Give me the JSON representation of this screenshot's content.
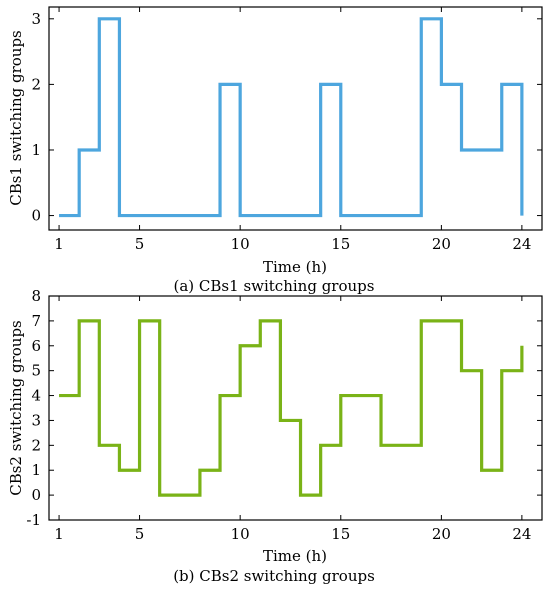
{
  "chart_data": [
    {
      "type": "line",
      "step": true,
      "caption": "(a) CBs1 switching groups",
      "xlabel": "Time (h)",
      "ylabel": "CBs1 switching groups",
      "x": [
        1,
        2,
        3,
        4,
        5,
        6,
        7,
        8,
        9,
        10,
        11,
        12,
        13,
        14,
        15,
        16,
        17,
        18,
        19,
        20,
        21,
        22,
        23,
        24
      ],
      "xticks": [
        1,
        5,
        10,
        15,
        20,
        24
      ],
      "yticks": [
        0,
        1,
        2,
        3
      ],
      "xlim": [
        0.5,
        25
      ],
      "ylim": [
        -0.22,
        3.18
      ],
      "series": [
        {
          "color": "#4da6de",
          "values": [
            0,
            1,
            3,
            0,
            0,
            0,
            0,
            0,
            2,
            0,
            0,
            0,
            0,
            2,
            0,
            0,
            0,
            0,
            3,
            2,
            1,
            1,
            2,
            0
          ]
        }
      ]
    },
    {
      "type": "line",
      "step": true,
      "caption": "(b) CBs2 switching groups",
      "xlabel": "Time (h)",
      "ylabel": "CBs2 switching groups",
      "x": [
        1,
        2,
        3,
        4,
        5,
        6,
        7,
        8,
        9,
        10,
        11,
        12,
        13,
        14,
        15,
        16,
        17,
        18,
        19,
        20,
        21,
        22,
        23,
        24
      ],
      "xticks": [
        1,
        5,
        10,
        15,
        20,
        24
      ],
      "yticks": [
        -1,
        0,
        1,
        2,
        3,
        4,
        5,
        6,
        7,
        8
      ],
      "xlim": [
        0.5,
        25
      ],
      "ylim": [
        -1,
        8
      ],
      "series": [
        {
          "color": "#7ab317",
          "values": [
            4,
            7,
            2,
            1,
            7,
            0,
            0,
            1,
            4,
            6,
            7,
            3,
            0,
            2,
            4,
            4,
            2,
            2,
            7,
            7,
            5,
            1,
            5,
            6
          ]
        }
      ]
    }
  ]
}
